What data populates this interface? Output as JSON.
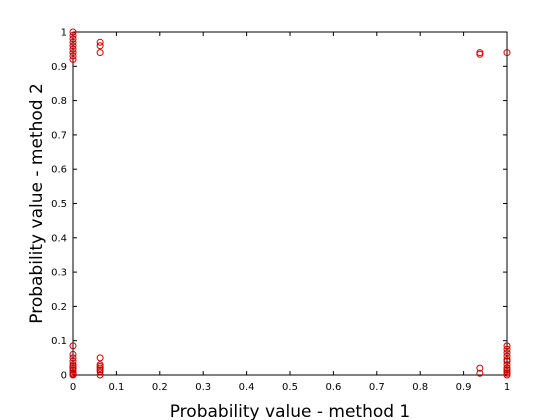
{
  "chart_data": {
    "type": "scatter",
    "title": "",
    "xlabel": "Probability value - method 1",
    "ylabel": "Probability value - method 2",
    "xlim": [
      0,
      1
    ],
    "ylim": [
      0,
      1
    ],
    "xticks": [
      "0",
      "0.1",
      "0.2",
      "0.3",
      "0.4",
      "0.5",
      "0.6",
      "0.7",
      "0.8",
      "0.9",
      "1"
    ],
    "yticks": [
      "0",
      "0.1",
      "0.2",
      "0.3",
      "0.4",
      "0.5",
      "0.6",
      "0.7",
      "0.8",
      "0.9",
      "1"
    ],
    "grid": false,
    "marker": "circle",
    "marker_color": "#cc0000",
    "series": [
      {
        "x": [
          0,
          0,
          0,
          0,
          0,
          0,
          0,
          0,
          0,
          0,
          0,
          0,
          0,
          0,
          0,
          0,
          0,
          0,
          0,
          0,
          0,
          0.0625,
          0.0625,
          0.0625,
          0.0625,
          0.0625,
          0.0625,
          0.0625,
          0.0625,
          0.0625,
          0.0625,
          0.9375,
          0.9375,
          0.9375,
          0.9375,
          1,
          1,
          1,
          1,
          1,
          1,
          1,
          1,
          1,
          1,
          1,
          1,
          1
        ],
        "y": [
          1,
          0.99,
          0.98,
          0.97,
          0.96,
          0.95,
          0.94,
          0.93,
          0.92,
          0.085,
          0.06,
          0.05,
          0.04,
          0.03,
          0.025,
          0.02,
          0.015,
          0.01,
          0.005,
          0.002,
          0,
          0.97,
          0.96,
          0.94,
          0.05,
          0.03,
          0.025,
          0.02,
          0.015,
          0.01,
          0,
          0.94,
          0.935,
          0.02,
          0.005,
          0.94,
          0.085,
          0.075,
          0.065,
          0.055,
          0.045,
          0.04,
          0.03,
          0.02,
          0.015,
          0.01,
          0.005,
          0
        ]
      }
    ]
  }
}
